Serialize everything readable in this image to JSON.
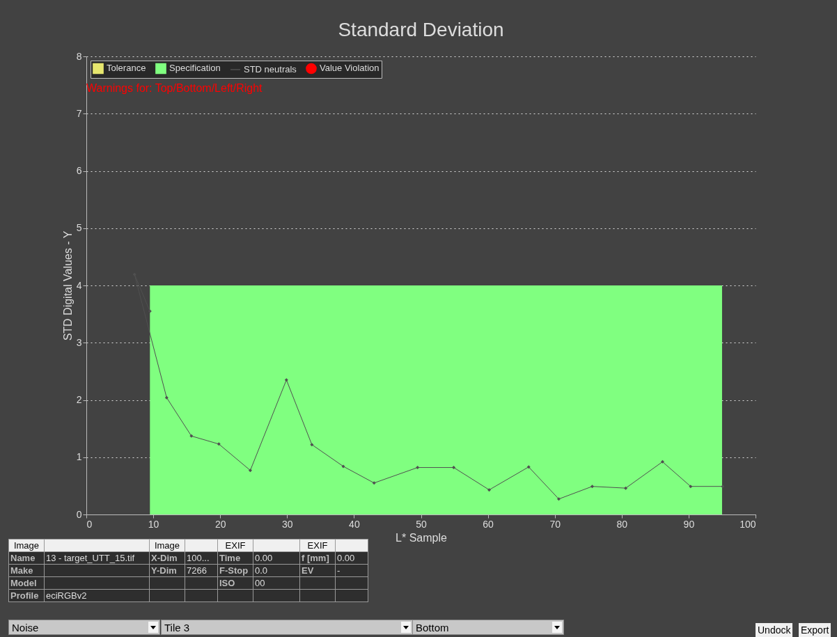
{
  "chart_data": {
    "type": "line",
    "title": "Standard Deviation",
    "xlabel": "L* Sample",
    "ylabel": "STD Digital Values - Y",
    "xlim": [
      0,
      100
    ],
    "xticks": [
      0,
      10,
      20,
      30,
      40,
      50,
      60,
      70,
      80,
      90,
      100
    ],
    "ylim": [
      0,
      8
    ],
    "yticks": [
      0,
      1,
      2,
      3,
      4,
      5,
      6,
      7,
      8
    ],
    "grid": "y",
    "legend": "top left",
    "series": [
      {
        "name": "Tolerance",
        "type": "area",
        "color": "#e6e66e"
      },
      {
        "name": "Specification",
        "type": "area",
        "color": "#80ff80",
        "x": [
          9.5,
          95
        ],
        "values": [
          4,
          4
        ]
      },
      {
        "name": "STD neutrals",
        "marker": "diamond",
        "color": "#505050",
        "x": [
          9.5,
          7.2,
          12.0,
          15.7,
          19.8,
          24.5,
          29.9,
          33.7,
          38.4,
          43.0,
          49.5,
          54.9,
          60.2,
          66.1,
          70.6,
          75.6,
          80.6,
          86.1,
          90.3,
          95.1
        ],
        "values": [
          3.55,
          4.19,
          2.04,
          1.37,
          1.23,
          0.77,
          2.35,
          1.22,
          0.84,
          0.55,
          0.82,
          0.82,
          0.43,
          0.83,
          0.27,
          0.49,
          0.46,
          0.92,
          0.49,
          0.49
        ]
      },
      {
        "name": "Value Violation",
        "type": "scatter",
        "color": "#ff0000"
      }
    ],
    "annotations": [
      "Warnings for: Top/Bottom/Left/Right",
      "Image",
      "Image",
      "EXIF",
      "EXIF",
      "Name",
      "13 - target_UTT_15.tif",
      "X-Dim",
      "100...",
      "Time",
      "0.00",
      "f [mm]",
      "0.00",
      "Make",
      "Y-Dim",
      "7266",
      "F-Stop",
      "0.0",
      "EV",
      "-",
      "Model",
      "ISO",
      "00",
      "Profile",
      "eciRGBv2",
      "Noise",
      "Tile 3",
      "Bottom",
      "Undock",
      "Export"
    ]
  }
}
